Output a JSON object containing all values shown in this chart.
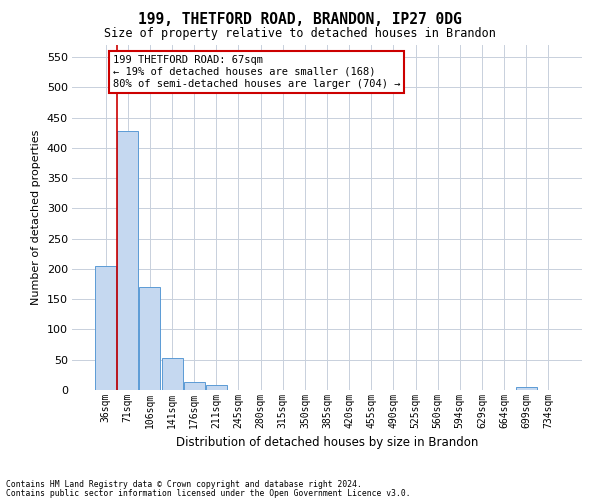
{
  "title_line1": "199, THETFORD ROAD, BRANDON, IP27 0DG",
  "title_line2": "Size of property relative to detached houses in Brandon",
  "xlabel": "Distribution of detached houses by size in Brandon",
  "ylabel": "Number of detached properties",
  "bar_labels": [
    "36sqm",
    "71sqm",
    "106sqm",
    "141sqm",
    "176sqm",
    "211sqm",
    "245sqm",
    "280sqm",
    "315sqm",
    "350sqm",
    "385sqm",
    "420sqm",
    "455sqm",
    "490sqm",
    "525sqm",
    "560sqm",
    "594sqm",
    "629sqm",
    "664sqm",
    "699sqm",
    "734sqm"
  ],
  "bar_values": [
    205,
    428,
    170,
    53,
    13,
    9,
    0,
    0,
    0,
    0,
    0,
    0,
    0,
    0,
    0,
    0,
    0,
    0,
    0,
    5,
    0
  ],
  "bar_color": "#c5d8f0",
  "bar_edgecolor": "#5b9bd5",
  "grid_color": "#c8d0dc",
  "background_color": "#ffffff",
  "annotation_text": "199 THETFORD ROAD: 67sqm\n← 19% of detached houses are smaller (168)\n80% of semi-detached houses are larger (704) →",
  "annotation_box_color": "#ffffff",
  "annotation_box_edgecolor": "#cc0000",
  "vline_color": "#cc0000",
  "ylim": [
    0,
    570
  ],
  "yticks": [
    0,
    50,
    100,
    150,
    200,
    250,
    300,
    350,
    400,
    450,
    500,
    550
  ],
  "vline_pos": 0.5,
  "footnote1": "Contains HM Land Registry data © Crown copyright and database right 2024.",
  "footnote2": "Contains public sector information licensed under the Open Government Licence v3.0."
}
